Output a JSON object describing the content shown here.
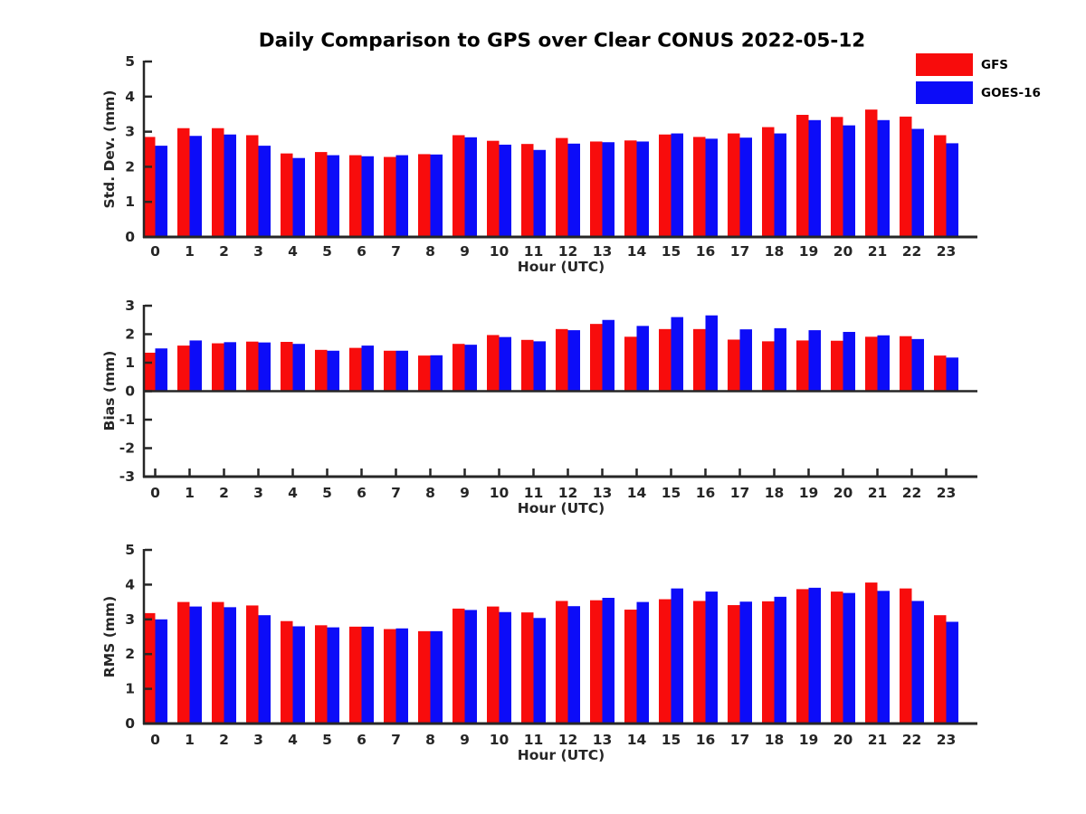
{
  "title": "Daily Comparison to GPS over Clear CONUS 2022-05-12",
  "colors": {
    "gfs_red": "#f80c0c",
    "goes_blue": "#0c0cf8",
    "axis": "#262626"
  },
  "legend": {
    "position": "top-right",
    "items": [
      {
        "label": "GFS",
        "color": "#f80c0c"
      },
      {
        "label": "GOES-16",
        "color": "#0c0cf8"
      }
    ]
  },
  "chart_data": [
    {
      "type": "bar",
      "panel": "std-dev",
      "ylabel": "Std. Dev. (mm)",
      "xlabel": "Hour (UTC)",
      "ylim": [
        0,
        5
      ],
      "yticks": [
        0,
        1,
        2,
        3,
        4,
        5
      ],
      "grid": false,
      "categories": [
        "0",
        "1",
        "2",
        "3",
        "4",
        "5",
        "6",
        "7",
        "8",
        "9",
        "10",
        "11",
        "12",
        "13",
        "14",
        "15",
        "16",
        "17",
        "18",
        "19",
        "20",
        "21",
        "22",
        "23"
      ],
      "series": [
        {
          "name": "GFS",
          "color": "#f80c0c",
          "values": [
            2.85,
            3.1,
            3.1,
            2.9,
            2.38,
            2.42,
            2.33,
            2.28,
            2.36,
            2.9,
            2.74,
            2.65,
            2.82,
            2.72,
            2.75,
            2.92,
            2.85,
            2.95,
            3.13,
            3.48,
            3.42,
            3.63,
            3.43,
            2.9
          ]
        },
        {
          "name": "GOES-16",
          "color": "#0c0cf8",
          "values": [
            2.6,
            2.88,
            2.92,
            2.6,
            2.25,
            2.33,
            2.3,
            2.33,
            2.35,
            2.84,
            2.63,
            2.48,
            2.66,
            2.7,
            2.72,
            2.95,
            2.8,
            2.83,
            2.95,
            3.33,
            3.18,
            3.33,
            3.08,
            2.67
          ]
        }
      ]
    },
    {
      "type": "bar",
      "panel": "bias",
      "ylabel": "Bias (mm)",
      "xlabel": "Hour (UTC)",
      "ylim": [
        -3,
        3
      ],
      "yticks": [
        -3,
        -2,
        -1,
        0,
        1,
        2,
        3
      ],
      "grid": false,
      "zero_line": true,
      "categories": [
        "0",
        "1",
        "2",
        "3",
        "4",
        "5",
        "6",
        "7",
        "8",
        "9",
        "10",
        "11",
        "12",
        "13",
        "14",
        "15",
        "16",
        "17",
        "18",
        "19",
        "20",
        "21",
        "22",
        "23"
      ],
      "series": [
        {
          "name": "GFS",
          "color": "#f80c0c",
          "values": [
            1.35,
            1.6,
            1.68,
            1.74,
            1.73,
            1.45,
            1.52,
            1.42,
            1.25,
            1.66,
            1.97,
            1.8,
            2.18,
            2.36,
            1.91,
            2.18,
            2.18,
            1.81,
            1.75,
            1.78,
            1.77,
            1.91,
            1.93,
            1.25
          ]
        },
        {
          "name": "GOES-16",
          "color": "#0c0cf8",
          "values": [
            1.5,
            1.78,
            1.72,
            1.71,
            1.66,
            1.42,
            1.6,
            1.42,
            1.26,
            1.63,
            1.9,
            1.75,
            2.14,
            2.5,
            2.29,
            2.6,
            2.66,
            2.17,
            2.21,
            2.14,
            2.08,
            1.96,
            1.83,
            1.18
          ]
        }
      ]
    },
    {
      "type": "bar",
      "panel": "rms",
      "ylabel": "RMS (mm)",
      "xlabel": "Hour (UTC)",
      "ylim": [
        0,
        5
      ],
      "yticks": [
        0,
        1,
        2,
        3,
        4,
        5
      ],
      "grid": false,
      "categories": [
        "0",
        "1",
        "2",
        "3",
        "4",
        "5",
        "6",
        "7",
        "8",
        "9",
        "10",
        "11",
        "12",
        "13",
        "14",
        "15",
        "16",
        "17",
        "18",
        "19",
        "20",
        "21",
        "22",
        "23"
      ],
      "series": [
        {
          "name": "GFS",
          "color": "#f80c0c",
          "values": [
            3.18,
            3.5,
            3.5,
            3.4,
            2.95,
            2.83,
            2.79,
            2.72,
            2.66,
            3.31,
            3.37,
            3.2,
            3.53,
            3.55,
            3.28,
            3.58,
            3.53,
            3.41,
            3.52,
            3.87,
            3.8,
            4.06,
            3.89,
            3.12
          ]
        },
        {
          "name": "GOES-16",
          "color": "#0c0cf8",
          "values": [
            3.0,
            3.37,
            3.35,
            3.12,
            2.8,
            2.77,
            2.79,
            2.74,
            2.66,
            3.27,
            3.21,
            3.04,
            3.38,
            3.62,
            3.5,
            3.89,
            3.8,
            3.51,
            3.65,
            3.91,
            3.76,
            3.82,
            3.53,
            2.93
          ]
        }
      ]
    }
  ]
}
